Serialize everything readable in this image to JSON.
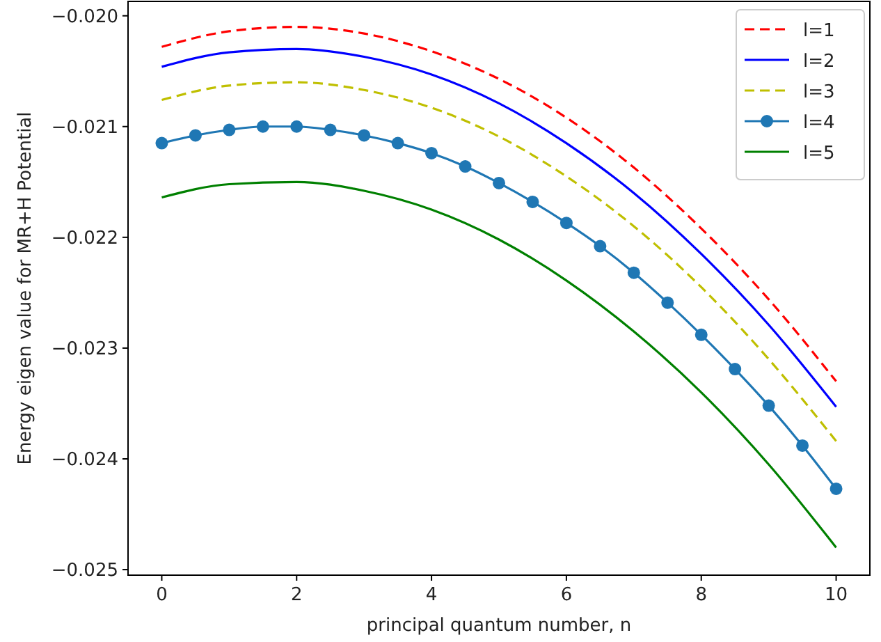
{
  "chart_data": {
    "type": "line",
    "xlabel": "principal quantum number, n",
    "ylabel": "Energy eigen value for MR+H Potential",
    "xlim": [
      -0.5,
      10.5
    ],
    "ylim": [
      -0.02505,
      -0.01987
    ],
    "xticks": [
      0,
      2,
      4,
      6,
      8,
      10
    ],
    "yticks": [
      {
        "value": -0.025,
        "label": "−0.025"
      },
      {
        "value": -0.024,
        "label": "−0.024"
      },
      {
        "value": -0.023,
        "label": "−0.023"
      },
      {
        "value": -0.022,
        "label": "−0.022"
      },
      {
        "value": -0.021,
        "label": "−0.021"
      },
      {
        "value": -0.02,
        "label": "−0.020"
      }
    ],
    "legend": "top right",
    "grid": false,
    "series": [
      {
        "name": "l=1",
        "color": "#ff0000",
        "line_style": "dashed",
        "marker": "none",
        "x": [
          0,
          1,
          2,
          3,
          4,
          5,
          6,
          7,
          8,
          9,
          10
        ],
        "values": [
          -0.02028,
          -0.02014,
          -0.0201,
          -0.02016,
          -0.02032,
          -0.02057,
          -0.02092,
          -0.02137,
          -0.02192,
          -0.02256,
          -0.0233
        ]
      },
      {
        "name": "l=2",
        "color": "#0000ff",
        "line_style": "solid",
        "marker": "none",
        "x": [
          0,
          1,
          2,
          3,
          4,
          5,
          6,
          7,
          8,
          9,
          10
        ],
        "values": [
          -0.02046,
          -0.02033,
          -0.0203,
          -0.02037,
          -0.02053,
          -0.02079,
          -0.02115,
          -0.0216,
          -0.02215,
          -0.02279,
          -0.02353
        ]
      },
      {
        "name": "l=3",
        "color": "#bfbf00",
        "line_style": "dashed",
        "marker": "none",
        "x": [
          0,
          1,
          2,
          3,
          4,
          5,
          6,
          7,
          8,
          9,
          10
        ],
        "values": [
          -0.02076,
          -0.02063,
          -0.0206,
          -0.02067,
          -0.02083,
          -0.02109,
          -0.02145,
          -0.0219,
          -0.02245,
          -0.0231,
          -0.02384
        ]
      },
      {
        "name": "l=4",
        "color": "#1f77b4",
        "line_style": "solid",
        "marker": "circle",
        "x": [
          0,
          0.5,
          1,
          1.5,
          2,
          2.5,
          3,
          3.5,
          4,
          4.5,
          5,
          5.5,
          6,
          6.5,
          7,
          7.5,
          8,
          8.5,
          9,
          9.5,
          10
        ],
        "values": [
          -0.02115,
          -0.02108,
          -0.02103,
          -0.021,
          -0.021,
          -0.02103,
          -0.02108,
          -0.02115,
          -0.02124,
          -0.02136,
          -0.02151,
          -0.02168,
          -0.02187,
          -0.02208,
          -0.02232,
          -0.02259,
          -0.02288,
          -0.02319,
          -0.02352,
          -0.02388,
          -0.02427
        ]
      },
      {
        "name": "l=5",
        "color": "#008000",
        "line_style": "solid",
        "marker": "none",
        "x": [
          0,
          1,
          2,
          3,
          4,
          5,
          6,
          7,
          8,
          9,
          10
        ],
        "values": [
          -0.02164,
          -0.02152,
          -0.0215,
          -0.02158,
          -0.02175,
          -0.02202,
          -0.02239,
          -0.02285,
          -0.0234,
          -0.02405,
          -0.0248
        ]
      }
    ]
  }
}
